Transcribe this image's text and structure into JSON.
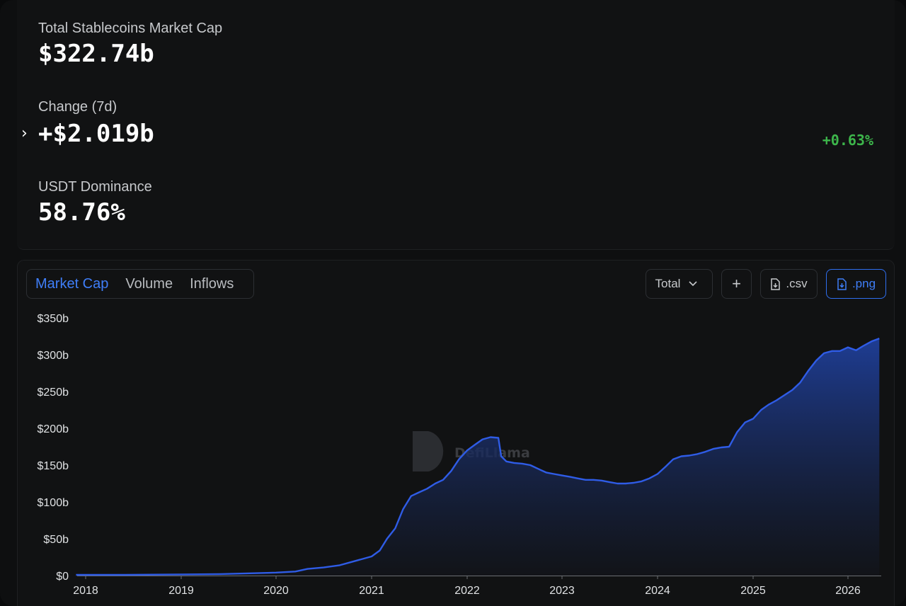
{
  "stats": {
    "market_cap_label": "Total Stablecoins Market Cap",
    "market_cap_value": "$322.74b",
    "change_label": "Change (7d)",
    "change_value": "+$2.019b",
    "change_pct": "+0.63%",
    "dominance_label": "USDT Dominance",
    "dominance_value": "58.76%"
  },
  "tabs": [
    {
      "label": "Market Cap",
      "active": true
    },
    {
      "label": "Volume",
      "active": false
    },
    {
      "label": "Inflows",
      "active": false
    }
  ],
  "controls": {
    "total_label": "Total",
    "add_label": "+",
    "csv_label": ".csv",
    "png_label": ".png"
  },
  "watermark": "DefiLlama",
  "colors": {
    "line": "#2f5ce6",
    "positive": "#3db64b",
    "accent": "#3f7ef8"
  },
  "chart_data": {
    "type": "area",
    "title": "",
    "xlabel": "",
    "ylabel": "",
    "ylim": [
      0,
      350
    ],
    "y_unit": "b",
    "y_ticks": [
      "$0",
      "$50b",
      "$100b",
      "$150b",
      "$200b",
      "$250b",
      "$300b",
      "$350b"
    ],
    "x_ticks": [
      "2018",
      "2019",
      "2020",
      "2021",
      "2022",
      "2023",
      "2024",
      "2025",
      "2026"
    ],
    "grid": false,
    "legend": "none",
    "series": [
      {
        "values_note_units": "USD billions",
        "x": [
          "2017-11-25",
          "2018-06-01",
          "2019-01-01",
          "2019-06-01",
          "2020-01-01",
          "2020-03-15",
          "2020-05-01",
          "2020-07-01",
          "2020-09-01",
          "2020-11-01",
          "2021-01-01",
          "2021-02-01",
          "2021-03-01",
          "2021-04-01",
          "2021-05-01",
          "2021-06-01",
          "2021-07-01",
          "2021-08-01",
          "2021-09-01",
          "2021-10-01",
          "2021-11-01",
          "2021-12-01",
          "2022-01-01",
          "2022-02-01",
          "2022-03-01",
          "2022-04-01",
          "2022-05-01",
          "2022-05-12",
          "2022-06-01",
          "2022-07-01",
          "2022-08-01",
          "2022-09-01",
          "2022-10-01",
          "2022-11-01",
          "2022-12-01",
          "2023-01-01",
          "2023-02-01",
          "2023-03-01",
          "2023-04-01",
          "2023-05-01",
          "2023-06-01",
          "2023-07-01",
          "2023-08-01",
          "2023-09-01",
          "2023-10-01",
          "2023-11-01",
          "2023-12-01",
          "2024-01-01",
          "2024-02-01",
          "2024-03-01",
          "2024-04-01",
          "2024-05-01",
          "2024-06-01",
          "2024-07-01",
          "2024-08-01",
          "2024-09-01",
          "2024-10-01",
          "2024-11-01",
          "2024-12-01",
          "2025-01-01",
          "2025-02-01",
          "2025-03-01",
          "2025-04-01",
          "2025-05-01",
          "2025-06-01",
          "2025-07-01",
          "2025-08-01",
          "2025-09-01",
          "2025-10-01",
          "2025-11-01",
          "2025-12-01",
          "2026-01-01",
          "2026-02-01",
          "2026-03-01",
          "2026-04-01",
          "2026-05-01"
        ],
        "values": [
          1,
          1,
          1.5,
          2,
          4,
          5.5,
          9,
          11,
          14,
          20,
          26,
          34,
          50,
          64,
          90,
          108,
          113,
          118,
          125,
          130,
          142,
          158,
          170,
          178,
          185,
          188,
          187,
          162,
          155,
          153,
          152,
          150,
          145,
          140,
          138,
          136,
          134,
          132,
          130,
          130,
          129,
          127,
          125,
          125,
          126,
          128,
          132,
          138,
          148,
          158,
          162,
          163,
          165,
          168,
          172,
          174,
          175,
          195,
          208,
          213,
          225,
          232,
          238,
          245,
          252,
          262,
          278,
          292,
          302,
          305,
          305,
          310,
          306,
          312,
          318,
          322
        ]
      }
    ]
  }
}
